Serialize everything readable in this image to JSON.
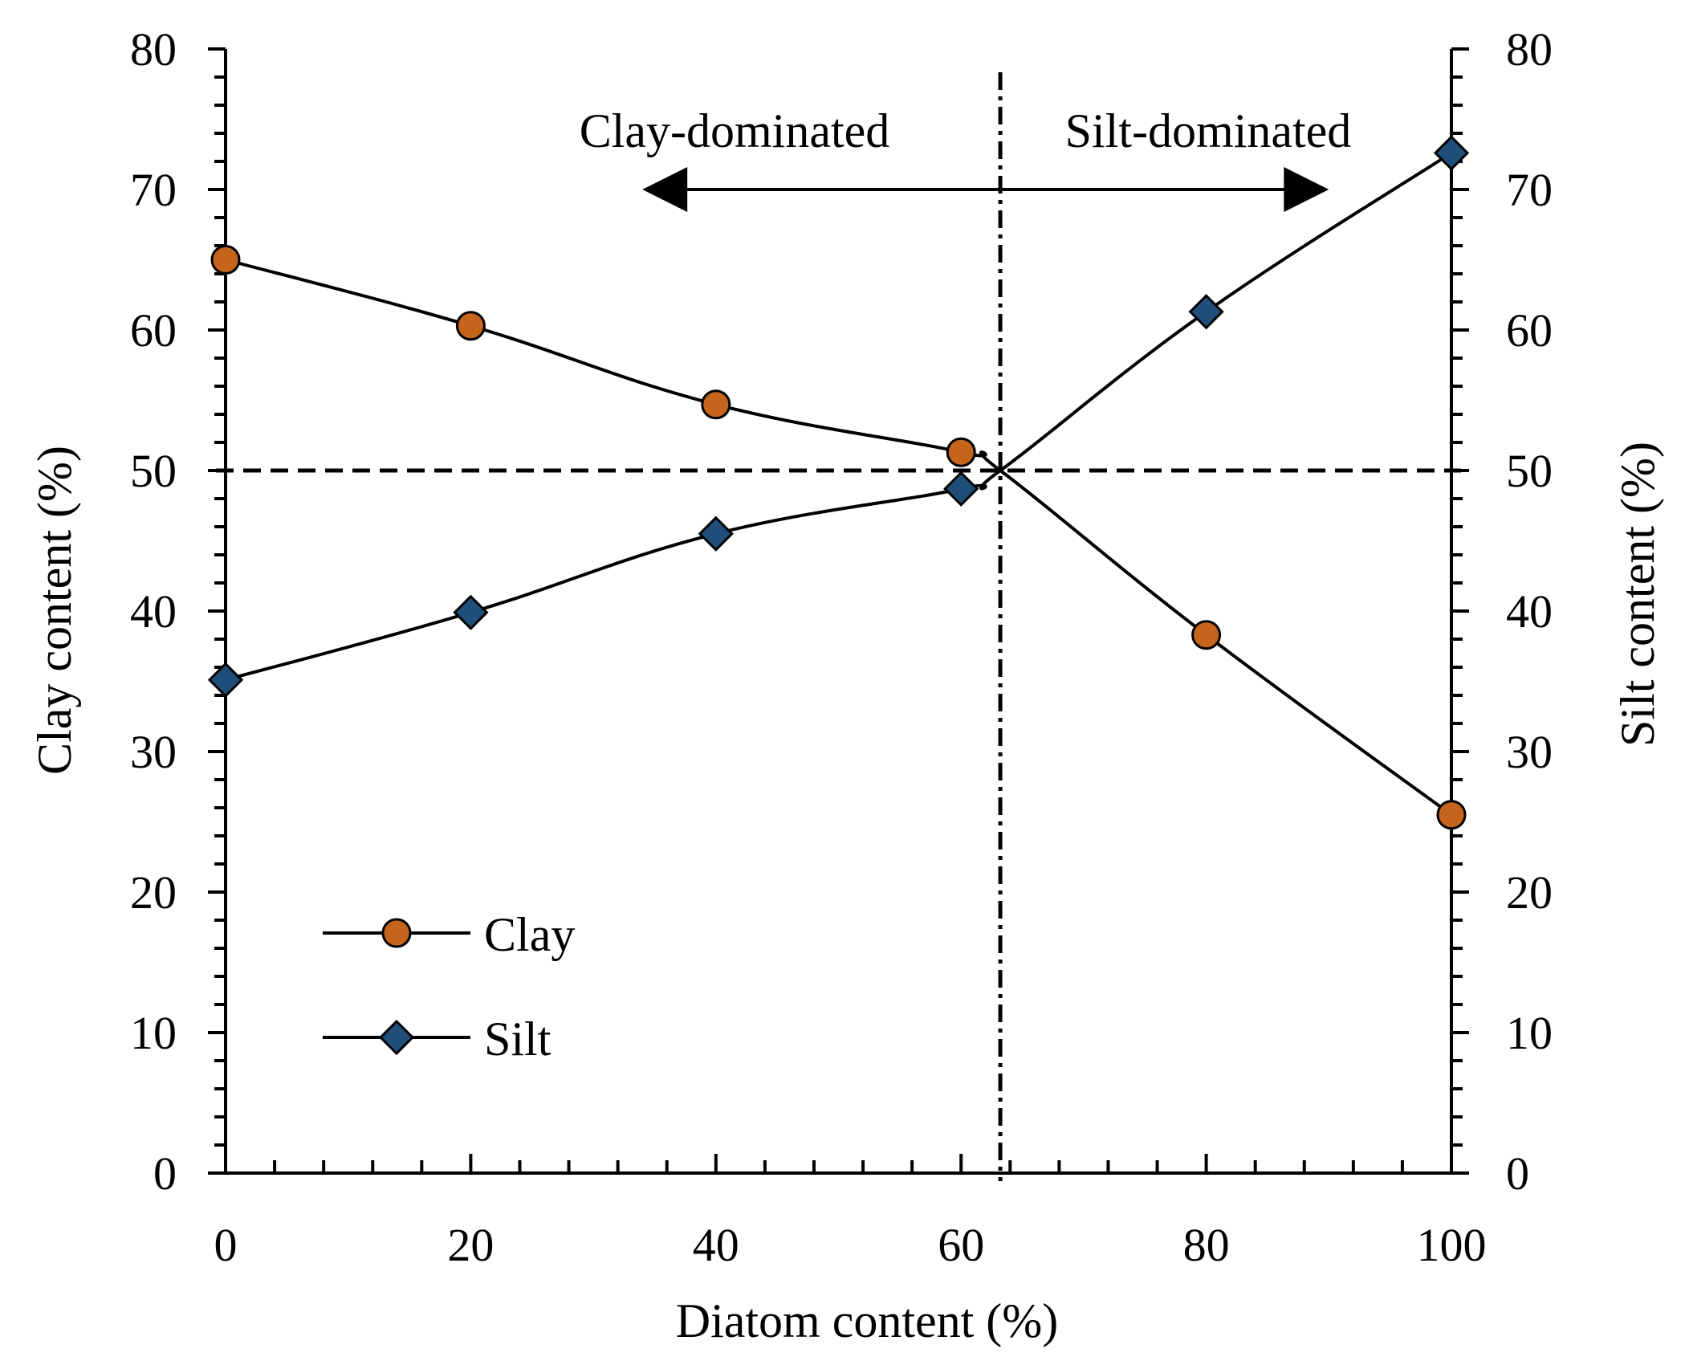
{
  "chart_data": {
    "type": "line",
    "x_label": "Diatom content (%)",
    "y_left_label": "Clay content (%)",
    "y_right_label": "Silt content (%)",
    "xlim": [
      0,
      100
    ],
    "ylim": [
      0,
      80
    ],
    "x_ticks": [
      0,
      20,
      40,
      60,
      80,
      100
    ],
    "y_ticks": [
      0,
      10,
      20,
      30,
      40,
      50,
      60,
      70,
      80
    ],
    "x_tick_labels": [
      "0",
      "20",
      "40",
      "60",
      "80",
      "100"
    ],
    "y_tick_labels": [
      "0",
      "10",
      "20",
      "30",
      "40",
      "50",
      "60",
      "70",
      "80"
    ],
    "x_minor_step": 4,
    "y_minor_step": 2,
    "series": [
      {
        "name": "Clay",
        "marker": "circle",
        "color": "#C5651B",
        "x": [
          0,
          20,
          40,
          60,
          80,
          100
        ],
        "values": [
          65.0,
          60.3,
          54.7,
          51.3,
          38.3,
          25.5
        ]
      },
      {
        "name": "Silt",
        "marker": "diamond",
        "color": "#1F4E79",
        "x": [
          0,
          20,
          40,
          60,
          80,
          100
        ],
        "values": [
          35.1,
          39.9,
          45.5,
          48.7,
          61.3,
          72.6
        ]
      }
    ],
    "reference_lines": {
      "horizontal_y": 50,
      "vertical_x": 63.2
    },
    "annotations": {
      "left_region": "Clay-dominated",
      "right_region": "Silt-dominated",
      "arrow_from_x": 34,
      "arrow_to_x": 90,
      "arrow_y": 70
    },
    "legend": {
      "position": "bottom-left",
      "entries": [
        "Clay",
        "Silt"
      ]
    }
  }
}
